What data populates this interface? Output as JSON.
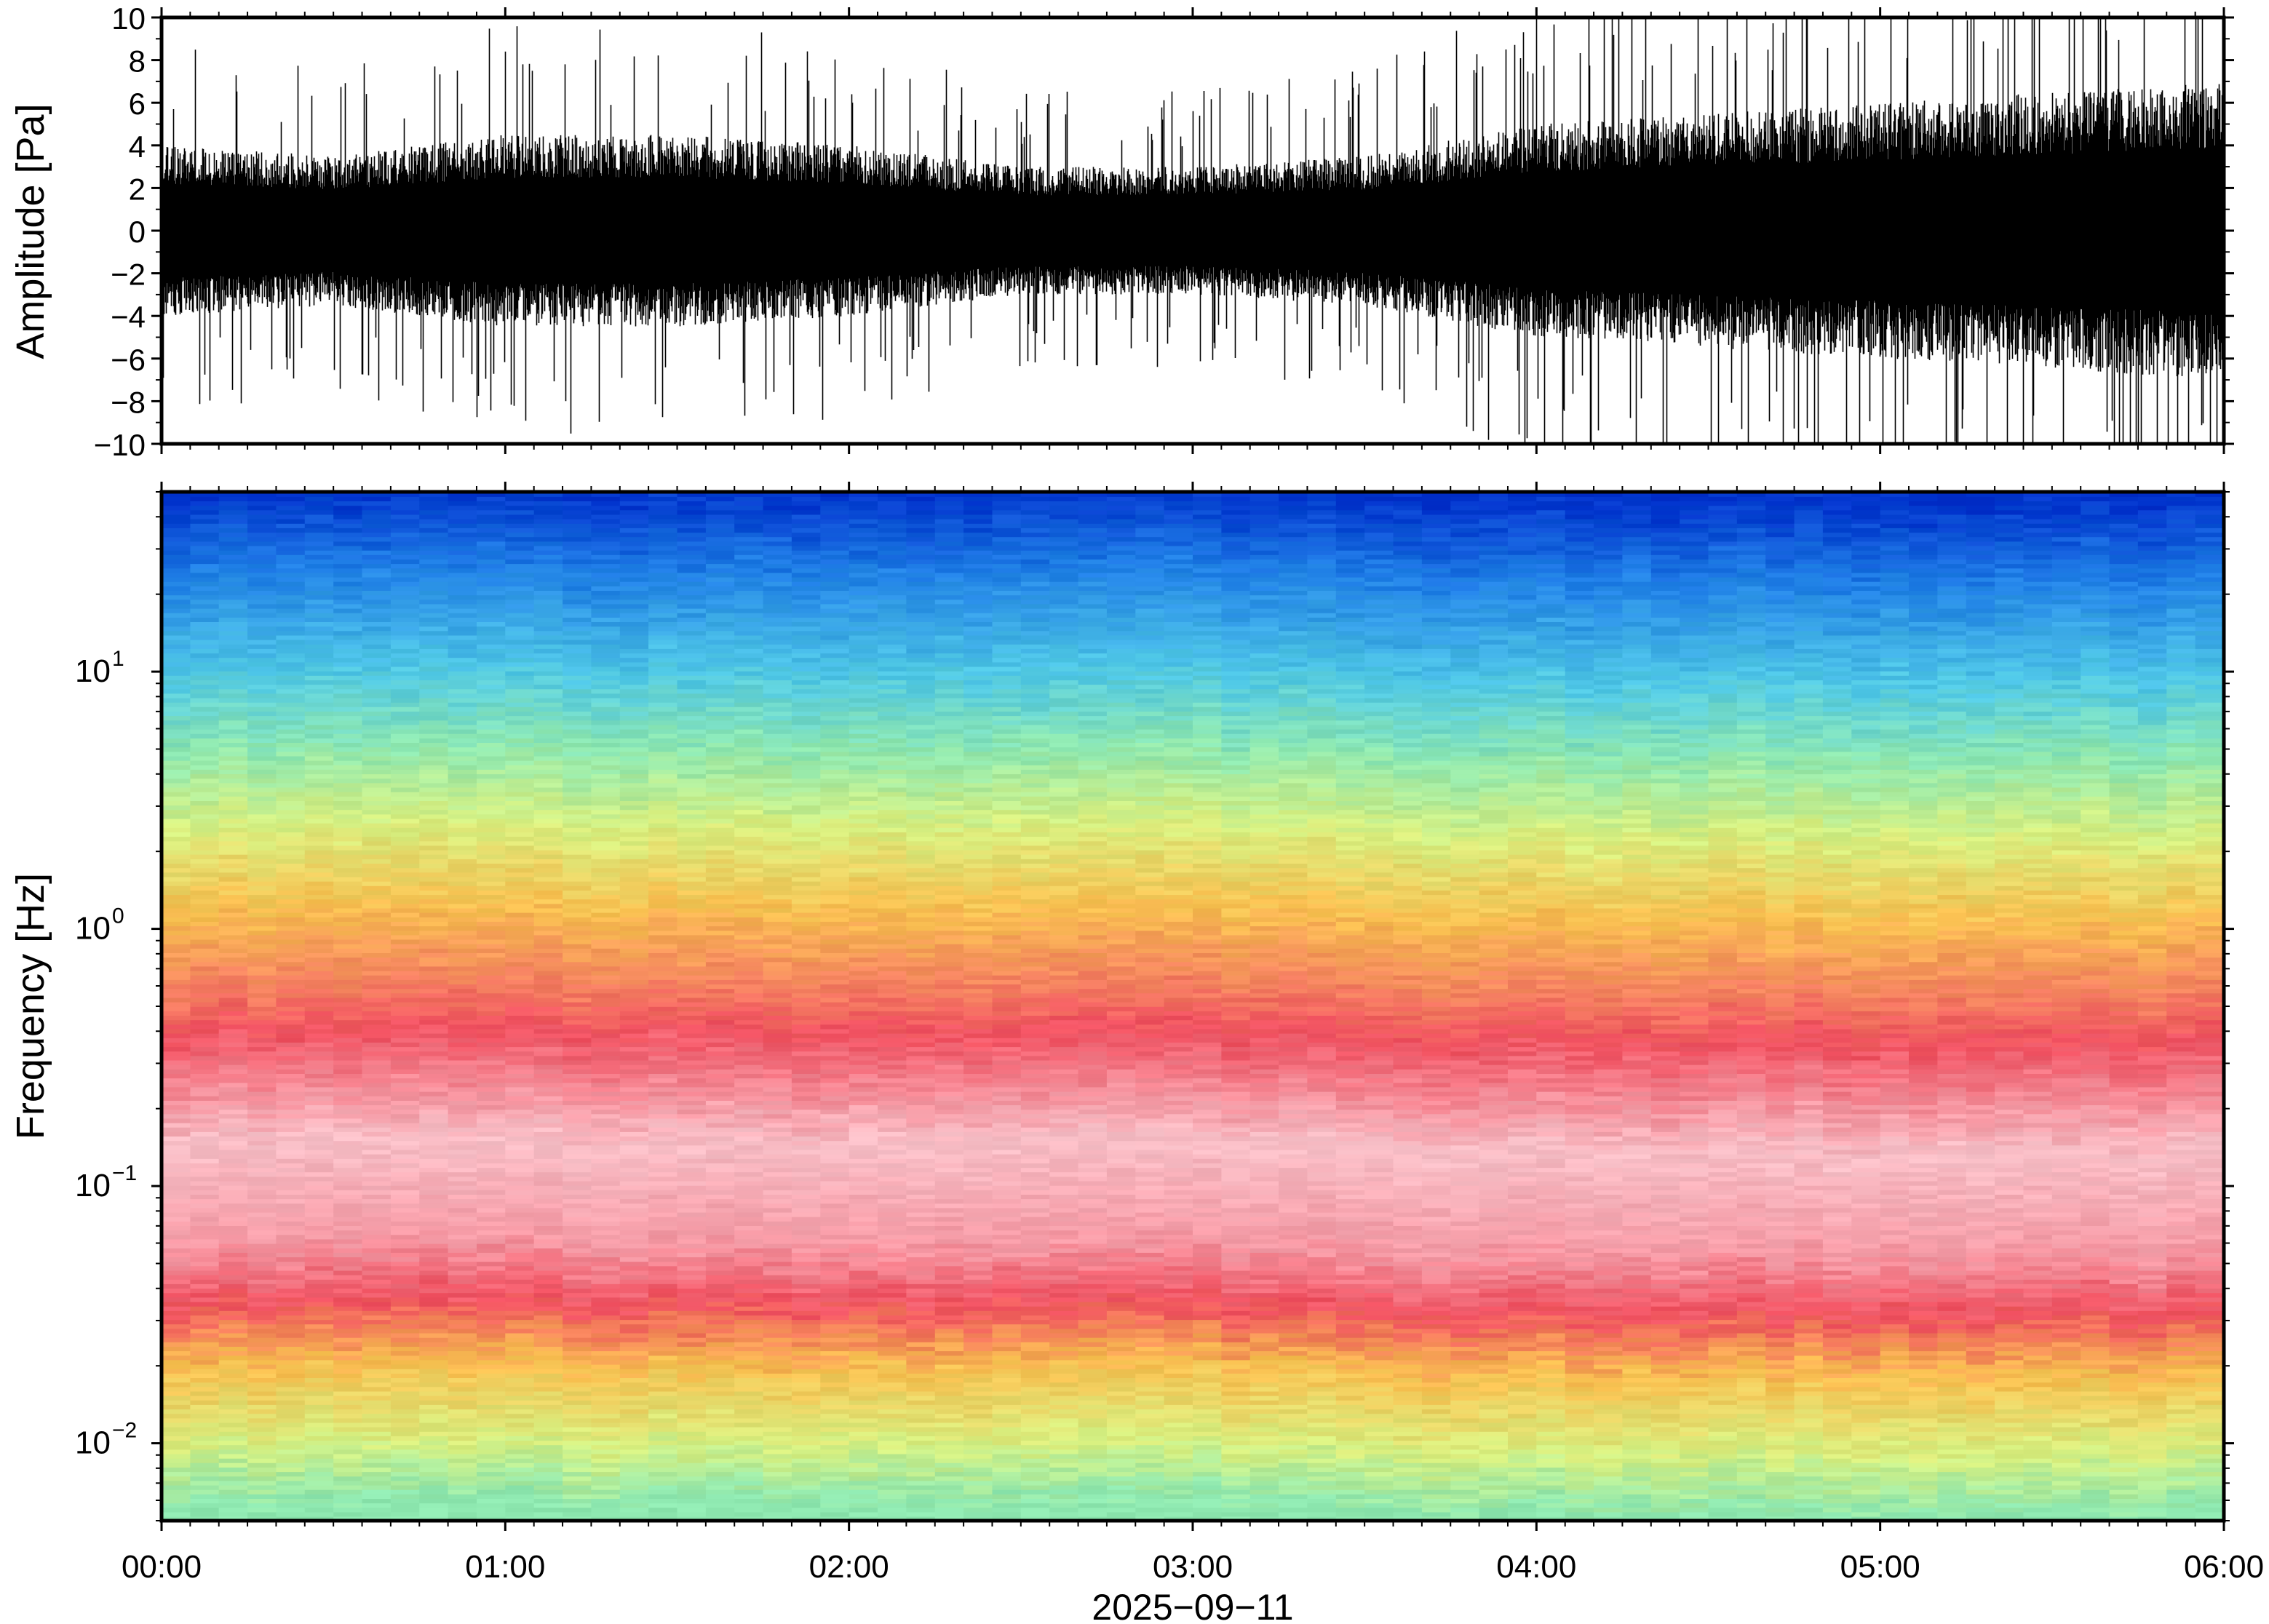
{
  "figure": {
    "date_label": "2025−09−11"
  },
  "chart_data": [
    {
      "type": "line",
      "panel": "waveform",
      "title": "",
      "xlabel": "2025−09−11",
      "ylabel": "Amplitude [Pa]",
      "xlim": [
        "00:00",
        "06:00"
      ],
      "ylim": [
        -10,
        10
      ],
      "x_ticks": [
        "00:00",
        "01:00",
        "02:00",
        "03:00",
        "04:00",
        "05:00",
        "06:00"
      ],
      "y_ticks": [
        "10",
        "8",
        "6",
        "4",
        "2",
        "0",
        "−2",
        "−4",
        "−6",
        "−8",
        "−10"
      ],
      "grid": false,
      "series": [
        {
          "color": "#000000",
          "x": [
            "00:00",
            "00:30",
            "01:00",
            "01:30",
            "02:00",
            "02:30",
            "03:00",
            "03:30",
            "04:00",
            "04:30",
            "05:00",
            "05:30",
            "06:00"
          ],
          "envelope_upper": [
            4.0,
            3.5,
            4.5,
            4.5,
            4.0,
            3.0,
            3.0,
            3.5,
            5.0,
            5.5,
            6.0,
            6.5,
            7.0
          ],
          "envelope_lower": [
            -4.0,
            -3.5,
            -4.5,
            -4.5,
            -4.0,
            -3.0,
            -3.0,
            -3.5,
            -5.0,
            -5.5,
            -6.0,
            -6.5,
            -7.0
          ],
          "peak_max": 10,
          "peak_min": -10
        }
      ]
    },
    {
      "type": "heatmap",
      "panel": "spectrogram",
      "title": "",
      "xlabel": "2025−09−11",
      "ylabel": "Frequency [Hz]",
      "xlim": [
        "00:00",
        "06:00"
      ],
      "ylim": [
        0.005,
        50
      ],
      "y_scale": "log",
      "x_ticks": [
        "00:00",
        "01:00",
        "02:00",
        "03:00",
        "04:00",
        "05:00",
        "06:00"
      ],
      "y_ticks": [
        {
          "value": 0.01,
          "base": "10",
          "exp": "−2"
        },
        {
          "value": 0.1,
          "base": "10",
          "exp": "−1"
        },
        {
          "value": 1,
          "base": "10",
          "exp": "0"
        },
        {
          "value": 10,
          "base": "10",
          "exp": "1"
        }
      ],
      "grid": false,
      "colormap": [
        "#0033cc",
        "#1f7fe6",
        "#4fc8e6",
        "#8ee8b0",
        "#d8f080",
        "#f8c050",
        "#f48060",
        "#f05060",
        "#f8c0c8"
      ],
      "frequency_profile": [
        {
          "freq": 50,
          "color": "#0033cc"
        },
        {
          "freq": 25,
          "color": "#1f7fe6"
        },
        {
          "freq": 10,
          "color": "#4fc8e6"
        },
        {
          "freq": 5,
          "color": "#8ee8b0"
        },
        {
          "freq": 2.5,
          "color": "#d8f080"
        },
        {
          "freq": 1.2,
          "color": "#f8c050"
        },
        {
          "freq": 0.6,
          "color": "#f48060"
        },
        {
          "freq": 0.4,
          "color": "#f05060"
        },
        {
          "freq": 0.15,
          "color": "#f8c0c8"
        },
        {
          "freq": 0.06,
          "color": "#f59aa5"
        },
        {
          "freq": 0.035,
          "color": "#f05060"
        },
        {
          "freq": 0.02,
          "color": "#f8c050"
        },
        {
          "freq": 0.01,
          "color": "#d8f080"
        },
        {
          "freq": 0.006,
          "color": "#8ee8b0"
        }
      ]
    }
  ]
}
